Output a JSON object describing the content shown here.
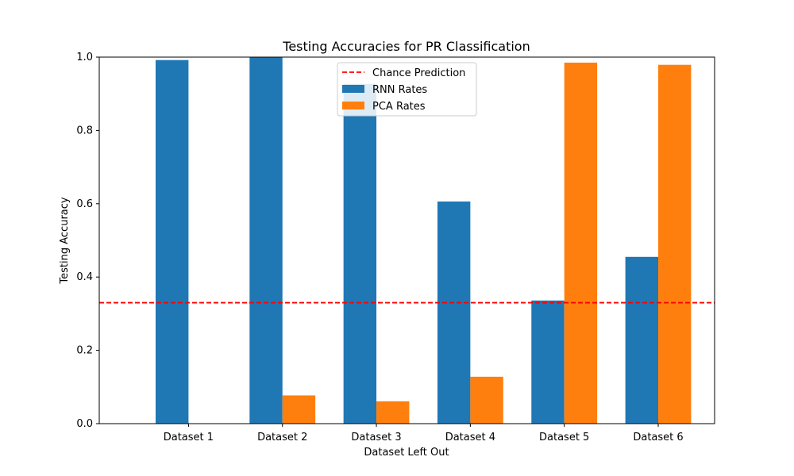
{
  "chart_data": {
    "type": "bar",
    "title": "Testing Accuracies for PR Classification",
    "xlabel": "Dataset Left Out",
    "ylabel": "Testing Accuracy",
    "categories": [
      "Dataset 1",
      "Dataset 2",
      "Dataset 3",
      "Dataset 4",
      "Dataset 5",
      "Dataset 6"
    ],
    "series": [
      {
        "name": "RNN Rates",
        "color": "#1f77b4",
        "values": [
          0.992,
          1.0,
          0.927,
          0.606,
          0.336,
          0.455
        ]
      },
      {
        "name": "PCA Rates",
        "color": "#ff7f0e",
        "values": [
          0.0,
          0.077,
          0.061,
          0.128,
          0.985,
          0.979
        ]
      }
    ],
    "reference_line": {
      "name": "Chance Prediction",
      "value": 0.33,
      "color": "#ff0000",
      "style": "dashed"
    },
    "ylim": [
      0,
      1.0
    ],
    "yticks": [
      "0.0",
      "0.2",
      "0.4",
      "0.6",
      "0.8",
      "1.0"
    ],
    "grid": false,
    "legend_position": "top-center"
  }
}
